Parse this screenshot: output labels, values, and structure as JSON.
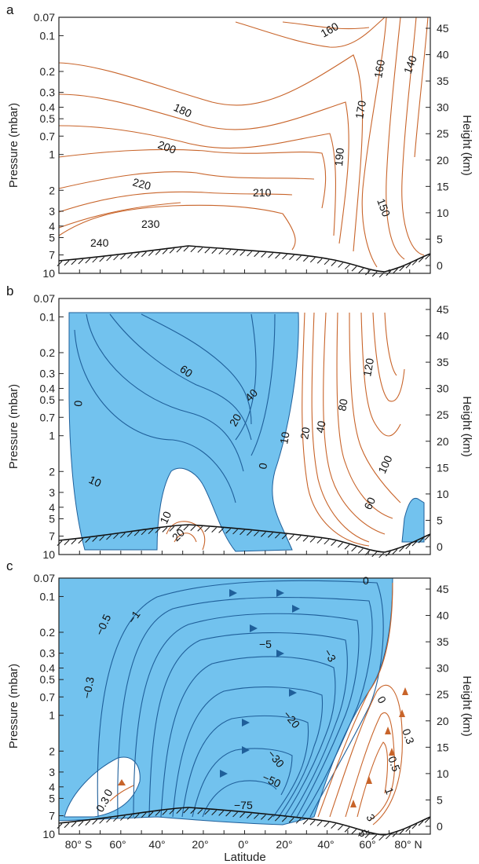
{
  "chart_data": [
    {
      "type": "contour",
      "panel": "a",
      "ylabel_left": "Pressure (mbar)",
      "ylabel_right": "Height (km)",
      "pressure_ticks": [
        "0.07",
        "0.1",
        "0.2",
        "0.3",
        "0.4",
        "0.5",
        "0.7",
        "1",
        "2",
        "3",
        "4",
        "5",
        "7",
        "10"
      ],
      "height_ticks": [
        "0",
        "5",
        "10",
        "15",
        "20",
        "25",
        "30",
        "35",
        "40",
        "45"
      ],
      "contour_labels": [
        "160",
        "160",
        "140",
        "170",
        "180",
        "200",
        "190",
        "220",
        "210",
        "230",
        "150",
        "240"
      ],
      "colors": {
        "contour": "#c8642a"
      }
    },
    {
      "type": "contour",
      "panel": "b",
      "ylabel_left": "Pressure (mbar)",
      "ylabel_right": "Height (km)",
      "pressure_ticks": [
        "0.07",
        "0.1",
        "0.2",
        "0.3",
        "0.4",
        "0.5",
        "0.7",
        "1",
        "2",
        "3",
        "4",
        "5",
        "7",
        "10"
      ],
      "height_ticks": [
        "0",
        "5",
        "10",
        "15",
        "20",
        "25",
        "30",
        "35",
        "40",
        "45"
      ],
      "contour_labels": [
        "60",
        "120",
        "40",
        "0",
        "80",
        "20",
        "10",
        "20",
        "40",
        "100",
        "0",
        "60",
        "10",
        "10",
        "20"
      ],
      "colors": {
        "fill": "#72c2ee",
        "negative": "#1f5f9a",
        "positive": "#c8642a"
      }
    },
    {
      "type": "contour",
      "panel": "c",
      "ylabel_left": "Pressure (mbar)",
      "ylabel_right": "Height (km)",
      "xlabel": "Latitude",
      "pressure_ticks": [
        "0.07",
        "0.1",
        "0.2",
        "0.3",
        "0.4",
        "0.5",
        "0.7",
        "1",
        "2",
        "3",
        "4",
        "5",
        "7",
        "10"
      ],
      "height_ticks": [
        "0",
        "5",
        "10",
        "15",
        "20",
        "25",
        "30",
        "35",
        "40",
        "45"
      ],
      "x_ticks": [
        "80° S",
        "60°",
        "40°",
        "20°",
        "0°",
        "20°",
        "40°",
        "60°",
        "80° N"
      ],
      "contour_labels": [
        "0",
        "−0.5",
        "−1",
        "−5",
        "−3",
        "−0.3",
        "0",
        "−20",
        "0.3",
        "−30",
        "0.5",
        "−50",
        "0",
        "−75",
        "1",
        "0.3",
        "3",
        "5"
      ],
      "colors": {
        "fill": "#72c2ee",
        "negative": "#1f5f9a",
        "positive": "#c8642a"
      }
    }
  ]
}
